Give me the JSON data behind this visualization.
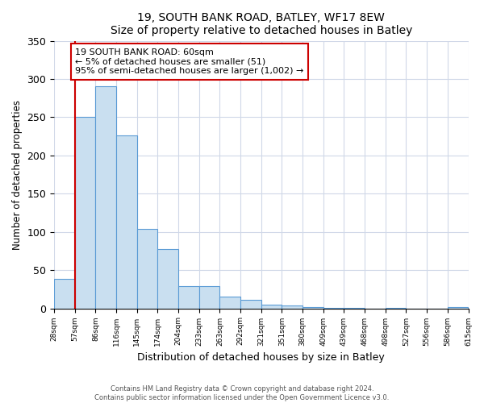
{
  "title": "19, SOUTH BANK ROAD, BATLEY, WF17 8EW",
  "subtitle": "Size of property relative to detached houses in Batley",
  "xlabel": "Distribution of detached houses by size in Batley",
  "ylabel": "Number of detached properties",
  "bar_values": [
    39,
    250,
    291,
    226,
    104,
    78,
    29,
    29,
    15,
    11,
    5,
    4,
    2,
    1,
    1,
    0,
    1,
    0,
    0,
    2
  ],
  "bar_labels": [
    "28sqm",
    "57sqm",
    "86sqm",
    "116sqm",
    "145sqm",
    "174sqm",
    "204sqm",
    "233sqm",
    "263sqm",
    "292sqm",
    "321sqm",
    "351sqm",
    "380sqm",
    "409sqm",
    "439sqm",
    "468sqm",
    "498sqm",
    "527sqm",
    "556sqm",
    "586sqm",
    "615sqm"
  ],
  "bar_color": "#c9dff0",
  "bar_edge_color": "#5b9bd5",
  "vline_color": "#cc0000",
  "ylim": [
    0,
    350
  ],
  "yticks": [
    0,
    50,
    100,
    150,
    200,
    250,
    300,
    350
  ],
  "annotation_text": "19 SOUTH BANK ROAD: 60sqm\n← 5% of detached houses are smaller (51)\n95% of semi-detached houses are larger (1,002) →",
  "annotation_box_color": "#ffffff",
  "annotation_box_edgecolor": "#cc0000",
  "footer_text": "Contains HM Land Registry data © Crown copyright and database right 2024.\nContains public sector information licensed under the Open Government Licence v3.0."
}
